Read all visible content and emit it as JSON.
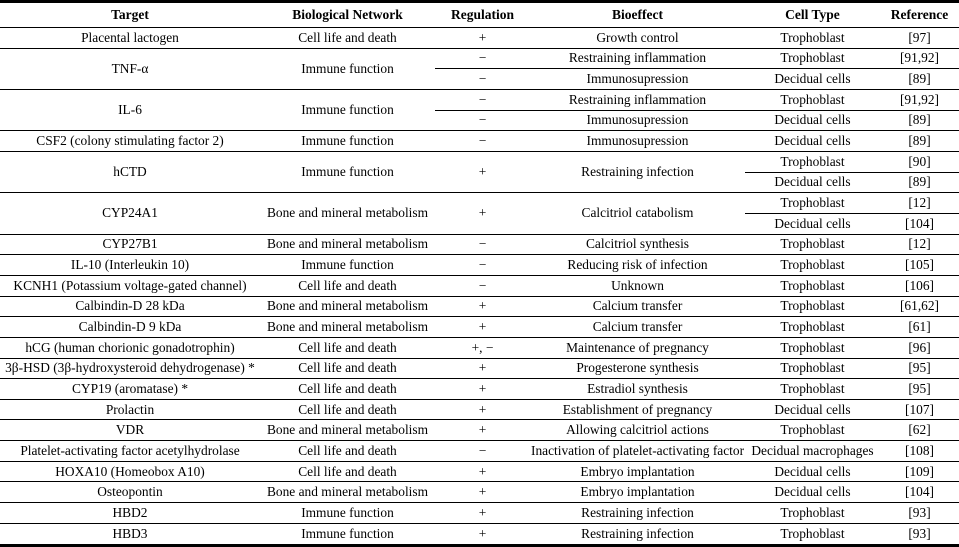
{
  "table": {
    "columns": {
      "target": "Target",
      "network": "Biological Network",
      "regulation": "Regulation",
      "bioeffect": "Bioeffect",
      "cell_type": "Cell Type",
      "reference": "Reference"
    },
    "border_color": "#000000",
    "groups": [
      {
        "merge": "none",
        "target": "Placental lactogen",
        "network": "Cell life and death",
        "rows": [
          {
            "regulation": "+",
            "bioeffect": "Growth control",
            "cell_type": "Trophoblast",
            "reference": "[97]"
          }
        ]
      },
      {
        "merge": "regulation",
        "target": "TNF-α",
        "network": "Immune function",
        "rows": [
          {
            "regulation": "−",
            "bioeffect": "Restraining inflammation",
            "cell_type": "Trophoblast",
            "reference": "[91,92]"
          },
          {
            "regulation": "−",
            "bioeffect": "Immunosupression",
            "cell_type": "Decidual cells",
            "reference": "[89]"
          }
        ]
      },
      {
        "merge": "regulation",
        "target": "IL-6",
        "network": "Immune function",
        "rows": [
          {
            "regulation": "−",
            "bioeffect": "Restraining inflammation",
            "cell_type": "Trophoblast",
            "reference": "[91,92]"
          },
          {
            "regulation": "−",
            "bioeffect": "Immunosupression",
            "cell_type": "Decidual cells",
            "reference": "[89]"
          }
        ]
      },
      {
        "merge": "none",
        "target": "CSF2 (colony stimulating factor 2)",
        "network": "Immune function",
        "rows": [
          {
            "regulation": "−",
            "bioeffect": "Immunosupression",
            "cell_type": "Decidual cells",
            "reference": "[89]"
          }
        ]
      },
      {
        "merge": "celltype",
        "target": "hCTD",
        "network": "Immune function",
        "regulation": "+",
        "bioeffect": "Restraining infection",
        "rows": [
          {
            "cell_type": "Trophoblast",
            "reference": "[90]"
          },
          {
            "cell_type": "Decidual cells",
            "reference": "[89]"
          }
        ]
      },
      {
        "merge": "celltype",
        "target": "CYP24A1",
        "network": "Bone and mineral metabolism",
        "regulation": "+",
        "bioeffect": "Calcitriol catabolism",
        "rows": [
          {
            "cell_type": "Trophoblast",
            "reference": "[12]"
          },
          {
            "cell_type": "Decidual cells",
            "reference": "[104]"
          }
        ]
      },
      {
        "merge": "none",
        "target": "CYP27B1",
        "network": "Bone and mineral metabolism",
        "rows": [
          {
            "regulation": "−",
            "bioeffect": "Calcitriol synthesis",
            "cell_type": "Trophoblast",
            "reference": "[12]"
          }
        ]
      },
      {
        "merge": "none",
        "target": "IL-10 (Interleukin 10)",
        "network": "Immune function",
        "rows": [
          {
            "regulation": "−",
            "bioeffect": "Reducing risk of infection",
            "cell_type": "Trophoblast",
            "reference": "[105]"
          }
        ]
      },
      {
        "merge": "none",
        "target": "KCNH1 (Potassium voltage-gated channel)",
        "network": "Cell life and death",
        "rows": [
          {
            "regulation": "−",
            "bioeffect": "Unknown",
            "cell_type": "Trophoblast",
            "reference": "[106]"
          }
        ]
      },
      {
        "merge": "none",
        "target": "Calbindin-D 28 kDa",
        "network": "Bone and mineral metabolism",
        "rows": [
          {
            "regulation": "+",
            "bioeffect": "Calcium transfer",
            "cell_type": "Trophoblast",
            "reference": "[61,62]"
          }
        ]
      },
      {
        "merge": "none",
        "target": "Calbindin-D 9 kDa",
        "network": "Bone and mineral metabolism",
        "rows": [
          {
            "regulation": "+",
            "bioeffect": "Calcium transfer",
            "cell_type": "Trophoblast",
            "reference": "[61]"
          }
        ]
      },
      {
        "merge": "none",
        "target": "hCG (human chorionic gonadotrophin)",
        "network": "Cell life and death",
        "rows": [
          {
            "regulation": "+, −",
            "bioeffect": "Maintenance of pregnancy",
            "cell_type": "Trophoblast",
            "reference": "[96]"
          }
        ]
      },
      {
        "merge": "none",
        "target": "3β-HSD (3β-hydroxysteroid dehydrogenase) *",
        "network": "Cell life and death",
        "rows": [
          {
            "regulation": "+",
            "bioeffect": "Progesterone synthesis",
            "cell_type": "Trophoblast",
            "reference": "[95]"
          }
        ]
      },
      {
        "merge": "none",
        "target": "CYP19 (aromatase) *",
        "network": "Cell life and death",
        "rows": [
          {
            "regulation": "+",
            "bioeffect": "Estradiol synthesis",
            "cell_type": "Trophoblast",
            "reference": "[95]"
          }
        ]
      },
      {
        "merge": "none",
        "target": "Prolactin",
        "network": "Cell life and death",
        "rows": [
          {
            "regulation": "+",
            "bioeffect": "Establishment of pregnancy",
            "cell_type": "Decidual cells",
            "reference": "[107]"
          }
        ]
      },
      {
        "merge": "none",
        "target": "VDR",
        "network": "Bone and mineral metabolism",
        "rows": [
          {
            "regulation": "+",
            "bioeffect": "Allowing calcitriol actions",
            "cell_type": "Trophoblast",
            "reference": "[62]"
          }
        ]
      },
      {
        "merge": "none",
        "target": "Platelet-activating factor acetylhydrolase",
        "network": "Cell life and death",
        "rows": [
          {
            "regulation": "−",
            "bioeffect": "Inactivation of platelet-activating factor",
            "cell_type": "Decidual macrophages",
            "reference": "[108]"
          }
        ]
      },
      {
        "merge": "none",
        "target": "HOXA10 (Homeobox A10)",
        "network": "Cell life and death",
        "rows": [
          {
            "regulation": "+",
            "bioeffect": "Embryo implantation",
            "cell_type": "Decidual cells",
            "reference": "[109]"
          }
        ]
      },
      {
        "merge": "none",
        "target": "Osteopontin",
        "network": "Bone and mineral metabolism",
        "rows": [
          {
            "regulation": "+",
            "bioeffect": "Embryo implantation",
            "cell_type": "Decidual cells",
            "reference": "[104]"
          }
        ]
      },
      {
        "merge": "none",
        "target": "HBD2",
        "network": "Immune function",
        "rows": [
          {
            "regulation": "+",
            "bioeffect": "Restraining infection",
            "cell_type": "Trophoblast",
            "reference": "[93]"
          }
        ]
      },
      {
        "merge": "none",
        "target": "HBD3",
        "network": "Immune function",
        "rows": [
          {
            "regulation": "+",
            "bioeffect": "Restraining infection",
            "cell_type": "Trophoblast",
            "reference": "[93]"
          }
        ]
      }
    ]
  }
}
